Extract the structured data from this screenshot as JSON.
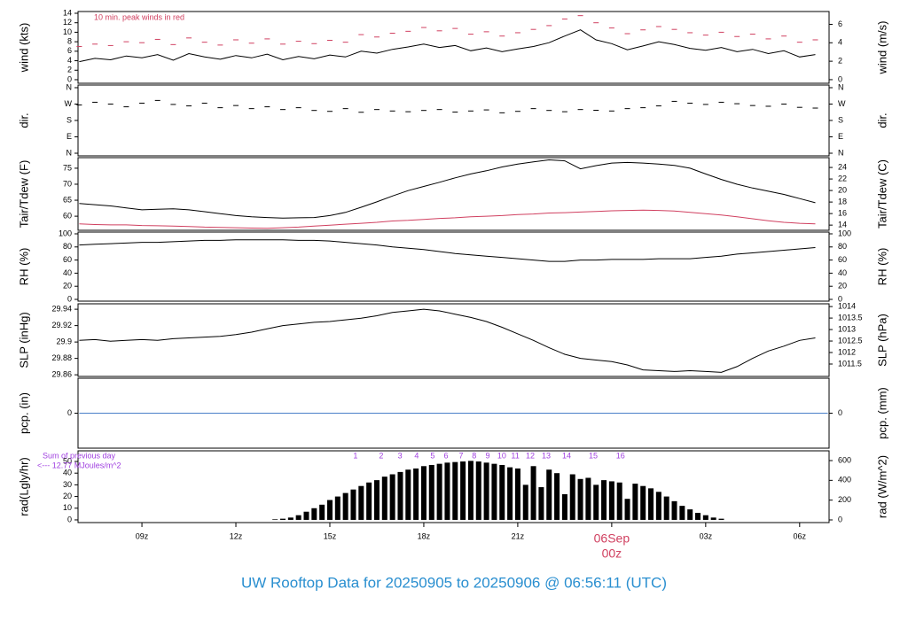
{
  "title": "UW Rooftop Data for 20250905  to  20250906 @ 06:56:11  (UTC)",
  "chart_data": [
    {
      "type": "line",
      "ylabel": "wind (kts)",
      "y2label": "wind (m/s)",
      "annotation": "10 min. peak winds in red",
      "annotation_color": "#d04060",
      "ylim": [
        -0.75,
        14.37
      ],
      "yticks": [
        0,
        2,
        4,
        6,
        8,
        10,
        12,
        14
      ],
      "y2lim": [
        -0.39,
        7.39
      ],
      "y2ticks": [
        0,
        2,
        4,
        6
      ],
      "x": [
        7,
        7.5,
        8,
        8.5,
        9,
        9.5,
        10,
        10.5,
        11,
        11.5,
        12,
        12.5,
        13,
        13.5,
        14,
        14.5,
        15,
        15.5,
        16,
        16.5,
        17,
        17.5,
        18,
        18.5,
        19,
        19.5,
        20,
        20.5,
        21,
        21.5,
        22,
        22.5,
        23,
        23.5,
        24,
        24.5,
        25,
        25.5,
        26,
        26.5,
        27,
        27.5,
        28,
        28.5,
        29,
        29.5,
        30,
        30.5
      ],
      "series": [
        {
          "color": "#000000",
          "marker": "none",
          "values": [
            3.8,
            4.5,
            4.2,
            5.0,
            4.6,
            5.3,
            4.1,
            5.5,
            4.8,
            4.3,
            5.1,
            4.6,
            5.4,
            4.2,
            4.9,
            4.4,
            5.2,
            4.8,
            6.0,
            5.6,
            6.4,
            6.9,
            7.5,
            6.8,
            7.2,
            6.1,
            6.7,
            5.9,
            6.5,
            7.0,
            7.8,
            9.2,
            10.5,
            8.4,
            7.6,
            6.3,
            7.1,
            8.0,
            7.4,
            6.6,
            6.2,
            6.8,
            5.9,
            6.4,
            5.5,
            6.1,
            4.8,
            5.3
          ]
        },
        {
          "color": "#d04060",
          "marker": "dash",
          "values": [
            7.0,
            7.5,
            7.2,
            8.0,
            7.8,
            8.5,
            7.4,
            8.8,
            7.9,
            7.3,
            8.4,
            7.7,
            8.6,
            7.5,
            8.1,
            7.6,
            8.3,
            7.9,
            9.5,
            9.0,
            9.8,
            10.2,
            11.0,
            10.3,
            10.8,
            9.6,
            10.1,
            9.2,
            9.9,
            10.6,
            11.4,
            12.8,
            13.5,
            12.0,
            10.9,
            9.7,
            10.5,
            11.2,
            10.6,
            9.9,
            9.4,
            10.0,
            9.1,
            9.6,
            8.6,
            9.2,
            7.9,
            8.4
          ]
        }
      ]
    },
    {
      "type": "scatter",
      "ylabel": "dir.",
      "y2label": "dir.",
      "ylim": [
        -14.6,
        374.6
      ],
      "yticks": [
        {
          "value": 360,
          "label": "N"
        },
        {
          "value": 270,
          "label": "W"
        },
        {
          "value": 180,
          "label": "S"
        },
        {
          "value": 90,
          "label": "E"
        },
        {
          "value": 0,
          "label": "N"
        }
      ],
      "y2lim": [
        -14.6,
        374.6
      ],
      "y2ticks": [
        {
          "value": 360,
          "label": "N"
        },
        {
          "value": 270,
          "label": "W"
        },
        {
          "value": 180,
          "label": "S"
        },
        {
          "value": 90,
          "label": "E"
        },
        {
          "value": 0,
          "label": "N"
        }
      ],
      "x": [
        7,
        7.5,
        8,
        8.5,
        9,
        9.5,
        10,
        10.5,
        11,
        11.5,
        12,
        12.5,
        13,
        13.5,
        14,
        14.5,
        15,
        15.5,
        16,
        16.5,
        17,
        17.5,
        18,
        18.5,
        19,
        19.5,
        20,
        20.5,
        21,
        21.5,
        22,
        22.5,
        23,
        23.5,
        24,
        24.5,
        25,
        25.5,
        26,
        26.5,
        27,
        27.5,
        28,
        28.5,
        29,
        29.5,
        30,
        30.5
      ],
      "series": [
        {
          "color": "#000000",
          "marker": "dash",
          "values": [
            265,
            280,
            270,
            255,
            275,
            290,
            268,
            260,
            275,
            250,
            262,
            245,
            255,
            240,
            250,
            235,
            230,
            245,
            225,
            240,
            232,
            228,
            235,
            240,
            226,
            232,
            238,
            222,
            230,
            245,
            235,
            228,
            240,
            236,
            232,
            245,
            250,
            260,
            285,
            275,
            268,
            280,
            272,
            262,
            258,
            270,
            252,
            248
          ]
        }
      ]
    },
    {
      "type": "line",
      "ylabel": "Tair/Tdew (F)",
      "y2label": "Tair/Tdew (C)",
      "ylim": [
        55.6,
        78.3
      ],
      "yticks": [
        60,
        65,
        70,
        75
      ],
      "y2lim": [
        13.1,
        25.7
      ],
      "y2ticks": [
        14,
        16,
        18,
        20,
        22,
        24
      ],
      "x": [
        7,
        7.5,
        8,
        8.5,
        9,
        9.5,
        10,
        10.5,
        11,
        11.5,
        12,
        12.5,
        13,
        13.5,
        14,
        14.5,
        15,
        15.5,
        16,
        16.5,
        17,
        17.5,
        18,
        18.5,
        19,
        19.5,
        20,
        20.5,
        21,
        21.5,
        22,
        22.5,
        23,
        23.5,
        24,
        24.5,
        25,
        25.5,
        26,
        26.5,
        27,
        27.5,
        28,
        28.5,
        29,
        29.5,
        30,
        30.5
      ],
      "series": [
        {
          "color": "#000000",
          "marker": "none",
          "values": [
            64,
            63.6,
            63.2,
            62.6,
            62.0,
            62.2,
            62.3,
            62.0,
            61.4,
            60.8,
            60.2,
            59.8,
            59.6,
            59.4,
            59.5,
            59.6,
            60.2,
            61.2,
            62.8,
            64.5,
            66.3,
            68.0,
            69.3,
            70.6,
            72.0,
            73.2,
            74.2,
            75.4,
            76.3,
            77.0,
            77.6,
            77.3,
            74.8,
            75.8,
            76.6,
            76.8,
            76.6,
            76.3,
            75.9,
            75.0,
            73.2,
            71.5,
            70.0,
            68.8,
            67.8,
            66.8,
            65.5,
            64.2
          ]
        },
        {
          "color": "#d04060",
          "marker": "none",
          "values": [
            57.6,
            57.4,
            57.3,
            57.3,
            57.1,
            57.0,
            56.9,
            56.8,
            56.6,
            56.5,
            56.4,
            56.3,
            56.2,
            56.4,
            56.6,
            56.9,
            57.2,
            57.5,
            57.8,
            58.1,
            58.5,
            58.7,
            59.0,
            59.3,
            59.5,
            59.8,
            60.0,
            60.2,
            60.5,
            60.7,
            61.0,
            61.1,
            61.3,
            61.5,
            61.7,
            61.8,
            61.9,
            61.8,
            61.6,
            61.2,
            60.8,
            60.4,
            59.8,
            59.2,
            58.6,
            58.1,
            57.8,
            57.6
          ]
        }
      ]
    },
    {
      "type": "line",
      "ylabel": "RH (%)",
      "y2label": "RH (%)",
      "ylim": [
        -2.7,
        102.7
      ],
      "yticks": [
        0,
        20,
        40,
        60,
        80,
        100
      ],
      "y2lim": [
        -2.7,
        102.7
      ],
      "y2ticks": [
        0,
        20,
        40,
        60,
        80,
        100
      ],
      "x": [
        7,
        7.5,
        8,
        8.5,
        9,
        9.5,
        10,
        10.5,
        11,
        11.5,
        12,
        12.5,
        13,
        13.5,
        14,
        14.5,
        15,
        15.5,
        16,
        16.5,
        17,
        17.5,
        18,
        18.5,
        19,
        19.5,
        20,
        20.5,
        21,
        21.5,
        22,
        22.5,
        23,
        23.5,
        24,
        24.5,
        25,
        25.5,
        26,
        26.5,
        27,
        27.5,
        28,
        28.5,
        29,
        29.5,
        30,
        30.5
      ],
      "series": [
        {
          "color": "#000000",
          "marker": "none",
          "values": [
            83,
            84,
            85,
            86,
            87,
            87,
            88,
            89,
            90,
            90,
            91,
            91,
            91,
            91,
            90,
            90,
            89,
            87,
            85,
            83,
            80,
            78,
            76,
            73,
            70,
            68,
            66,
            64,
            62,
            60,
            58,
            58,
            60,
            60,
            61,
            61,
            61,
            62,
            62,
            62,
            64,
            66,
            69,
            71,
            73,
            75,
            77,
            79
          ]
        }
      ]
    },
    {
      "type": "line",
      "ylabel": "SLP (inHg)",
      "y2label": "SLP (hPa)",
      "ylim": [
        29.858,
        29.9466
      ],
      "yticks": [
        29.86,
        29.88,
        29.9,
        29.92,
        29.94
      ],
      "y2lim": [
        1010.96,
        1014.12
      ],
      "y2ticks": [
        1011.5,
        1012,
        1012.5,
        1013,
        1013.5,
        1014
      ],
      "x": [
        7,
        7.5,
        8,
        8.5,
        9,
        9.5,
        10,
        10.5,
        11,
        11.5,
        12,
        12.5,
        13,
        13.5,
        14,
        14.5,
        15,
        15.5,
        16,
        16.5,
        17,
        17.5,
        18,
        18.5,
        19,
        19.5,
        20,
        20.5,
        21,
        21.5,
        22,
        22.5,
        23,
        23.5,
        24,
        24.5,
        25,
        25.5,
        26,
        26.5,
        27,
        27.5,
        28,
        28.5,
        29,
        29.5,
        30,
        30.5
      ],
      "series": [
        {
          "color": "#000000",
          "marker": "none",
          "values": [
            29.902,
            29.903,
            29.901,
            29.902,
            29.903,
            29.902,
            29.904,
            29.905,
            29.906,
            29.907,
            29.909,
            29.912,
            29.916,
            29.92,
            29.922,
            29.924,
            29.925,
            29.927,
            29.929,
            29.932,
            29.936,
            29.938,
            29.94,
            29.938,
            29.934,
            29.93,
            29.925,
            29.918,
            29.91,
            29.902,
            29.893,
            29.885,
            29.88,
            29.878,
            29.876,
            29.872,
            29.866,
            29.865,
            29.864,
            29.865,
            29.864,
            29.863,
            29.87,
            29.88,
            29.889,
            29.895,
            29.902,
            29.905
          ]
        }
      ]
    },
    {
      "type": "line",
      "ylabel": "pcp. (in)",
      "y2label": "pcp. (mm)",
      "ylim": [
        -1,
        1
      ],
      "yticks": [
        0
      ],
      "y2lim": [
        -1,
        1
      ],
      "y2ticks": [
        0
      ],
      "x": [
        7,
        30.9
      ],
      "series": [
        {
          "color": "#4a7fc8",
          "marker": "none",
          "values": [
            0,
            0
          ]
        }
      ]
    },
    {
      "type": "bar",
      "ylabel": "rad(Lgly/hr)",
      "y2label": "rad (W/m^2)",
      "annotations": [
        "Sum of previous day",
        "<--- 12.77 MJoules/m^2"
      ],
      "annotation_color": "#a040e0",
      "hour_marks": [
        {
          "value": 15.82,
          "label": "1"
        },
        {
          "value": 16.64,
          "label": "2"
        },
        {
          "value": 17.24,
          "label": "3"
        },
        {
          "value": 17.77,
          "label": "4"
        },
        {
          "value": 18.28,
          "label": "5"
        },
        {
          "value": 18.71,
          "label": "6"
        },
        {
          "value": 19.19,
          "label": "7"
        },
        {
          "value": 19.61,
          "label": "8"
        },
        {
          "value": 20.04,
          "label": "9"
        },
        {
          "value": 20.49,
          "label": "10"
        },
        {
          "value": 20.92,
          "label": "11"
        },
        {
          "value": 21.4,
          "label": "12"
        },
        {
          "value": 21.91,
          "label": "13"
        },
        {
          "value": 22.56,
          "label": "14"
        },
        {
          "value": 23.41,
          "label": "15"
        },
        {
          "value": 24.28,
          "label": "16"
        }
      ],
      "ylim": [
        -2.3,
        59.1
      ],
      "yticks": [
        0,
        10,
        20,
        30,
        40,
        50
      ],
      "y2lim": [
        -26.9,
        698.5
      ],
      "y2ticks": [
        0,
        200,
        400,
        600
      ],
      "xlim": [
        6.96,
        30.94
      ],
      "xticks": [
        {
          "value": 9,
          "label": "09z"
        },
        {
          "value": 12,
          "label": "12z"
        },
        {
          "value": 15,
          "label": "15z"
        },
        {
          "value": 18,
          "label": "18z"
        },
        {
          "value": 21,
          "label": "21z"
        },
        {
          "value": 24,
          "label": "00z"
        },
        {
          "value": 27,
          "label": "03z"
        },
        {
          "value": 30,
          "label": "06z"
        }
      ],
      "xdate": {
        "value": 24,
        "label": "06Sep",
        "color": "#d04060"
      },
      "x": [
        13.25,
        13.5,
        13.75,
        14,
        14.25,
        14.5,
        14.75,
        15,
        15.25,
        15.5,
        15.75,
        16,
        16.25,
        16.5,
        16.75,
        17,
        17.25,
        17.5,
        17.75,
        18,
        18.25,
        18.5,
        18.75,
        19,
        19.25,
        19.5,
        19.75,
        20,
        20.25,
        20.5,
        20.75,
        21,
        21.25,
        21.5,
        21.75,
        22,
        22.25,
        22.5,
        22.75,
        23,
        23.25,
        23.5,
        23.75,
        24,
        24.25,
        24.5,
        24.75,
        25,
        25.25,
        25.5,
        25.75,
        26,
        26.25,
        26.5,
        26.75,
        27,
        27.25,
        27.5
      ],
      "color": "#000000",
      "values": [
        0.5,
        1,
        2,
        4,
        7,
        10,
        13,
        17,
        20,
        23,
        26,
        29,
        32,
        34,
        37,
        39,
        41,
        43,
        44,
        46,
        47,
        48,
        49,
        49.5,
        50,
        50.5,
        50,
        49,
        48,
        47,
        45,
        44,
        30,
        46,
        28,
        43,
        40,
        22,
        39,
        35,
        36,
        30,
        34,
        33,
        32,
        18,
        31,
        29,
        27,
        24,
        20,
        16,
        12,
        9,
        6,
        4,
        2,
        1
      ]
    }
  ]
}
